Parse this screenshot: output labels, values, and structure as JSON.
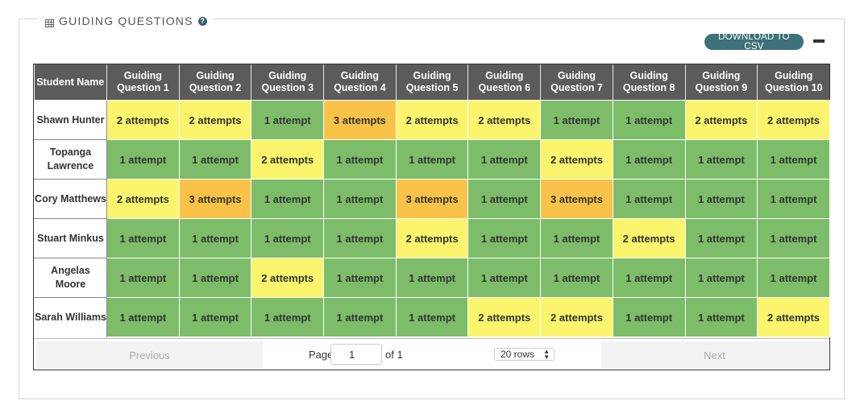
{
  "section": {
    "title": "GUIDING QUESTIONS",
    "download_label": "DOWNLOAD TO CSV"
  },
  "table": {
    "headers": [
      "Student Name",
      "Guiding Question 1",
      "Guiding Question 2",
      "Guiding Question 3",
      "Guiding Question 4",
      "Guiding Question 5",
      "Guiding Question 6",
      "Guiding Question 7",
      "Guiding Question 8",
      "Guiding Question 9",
      "Guiding Question 10"
    ],
    "rows": [
      {
        "name": "Shawn Hunter",
        "cells": [
          "2 attempts",
          "2 attempts",
          "1 attempt",
          "3 attempts",
          "2 attempts",
          "2 attempts",
          "1 attempt",
          "1 attempt",
          "2 attempts",
          "2 attempts"
        ]
      },
      {
        "name": "Topanga Lawrence",
        "cells": [
          "1 attempt",
          "1 attempt",
          "2 attempts",
          "1 attempt",
          "1 attempt",
          "1 attempt",
          "2 attempts",
          "1 attempt",
          "1 attempt",
          "1 attempt"
        ]
      },
      {
        "name": "Cory Matthews",
        "cells": [
          "2 attempts",
          "3 attempts",
          "1 attempt",
          "1 attempt",
          "3 attempts",
          "1 attempt",
          "3 attempts",
          "1 attempt",
          "1 attempt",
          "1 attempt"
        ]
      },
      {
        "name": "Stuart Minkus",
        "cells": [
          "1 attempt",
          "1 attempt",
          "1 attempt",
          "1 attempt",
          "2 attempts",
          "1 attempt",
          "1 attempt",
          "2 attempts",
          "1 attempt",
          "1 attempt"
        ]
      },
      {
        "name": "Angelas Moore",
        "cells": [
          "1 attempt",
          "1 attempt",
          "2 attempts",
          "1 attempt",
          "1 attempt",
          "1 attempt",
          "1 attempt",
          "1 attempt",
          "1 attempt",
          "1 attempt"
        ]
      },
      {
        "name": "Sarah Williams",
        "cells": [
          "1 attempt",
          "1 attempt",
          "1 attempt",
          "1 attempt",
          "1 attempt",
          "2 attempts",
          "2 attempts",
          "1 attempt",
          "1 attempt",
          "2 attempts"
        ]
      }
    ]
  },
  "colors": {
    "one_attempt": "#7dbd6a",
    "two_attempts": "#fbf56d",
    "three_attempts": "#f9c249",
    "header_bg": "#5b5b5b",
    "accent": "#3e7179"
  },
  "pagination": {
    "previous_label": "Previous",
    "next_label": "Next",
    "page_label": "Page",
    "page_value": "1",
    "of_label": "of 1",
    "rows_label": "20 rows"
  }
}
